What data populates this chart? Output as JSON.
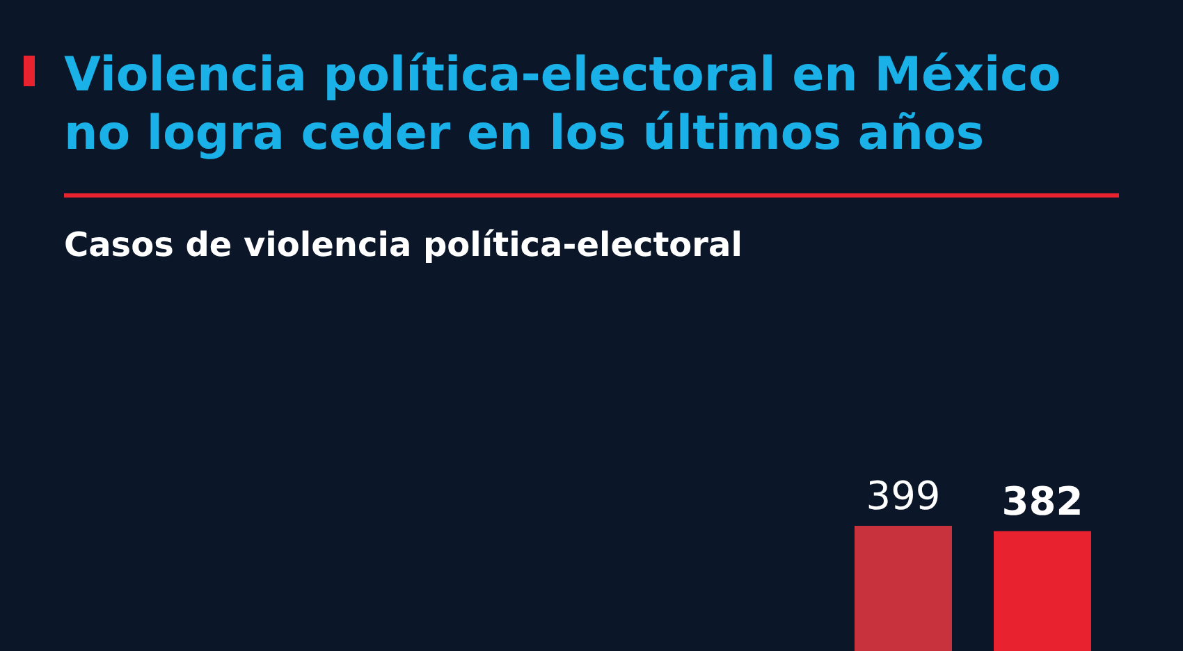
{
  "chart_data": {
    "type": "bar",
    "title": "Violencia política-electoral en México no logra ceder en los últimos años",
    "subtitle": "Casos de violencia política-electoral",
    "categories": [
      null,
      null
    ],
    "values": [
      399,
      382
    ],
    "colors": [
      "#c8323c",
      "#e8232f"
    ],
    "data_labels": true
  }
}
